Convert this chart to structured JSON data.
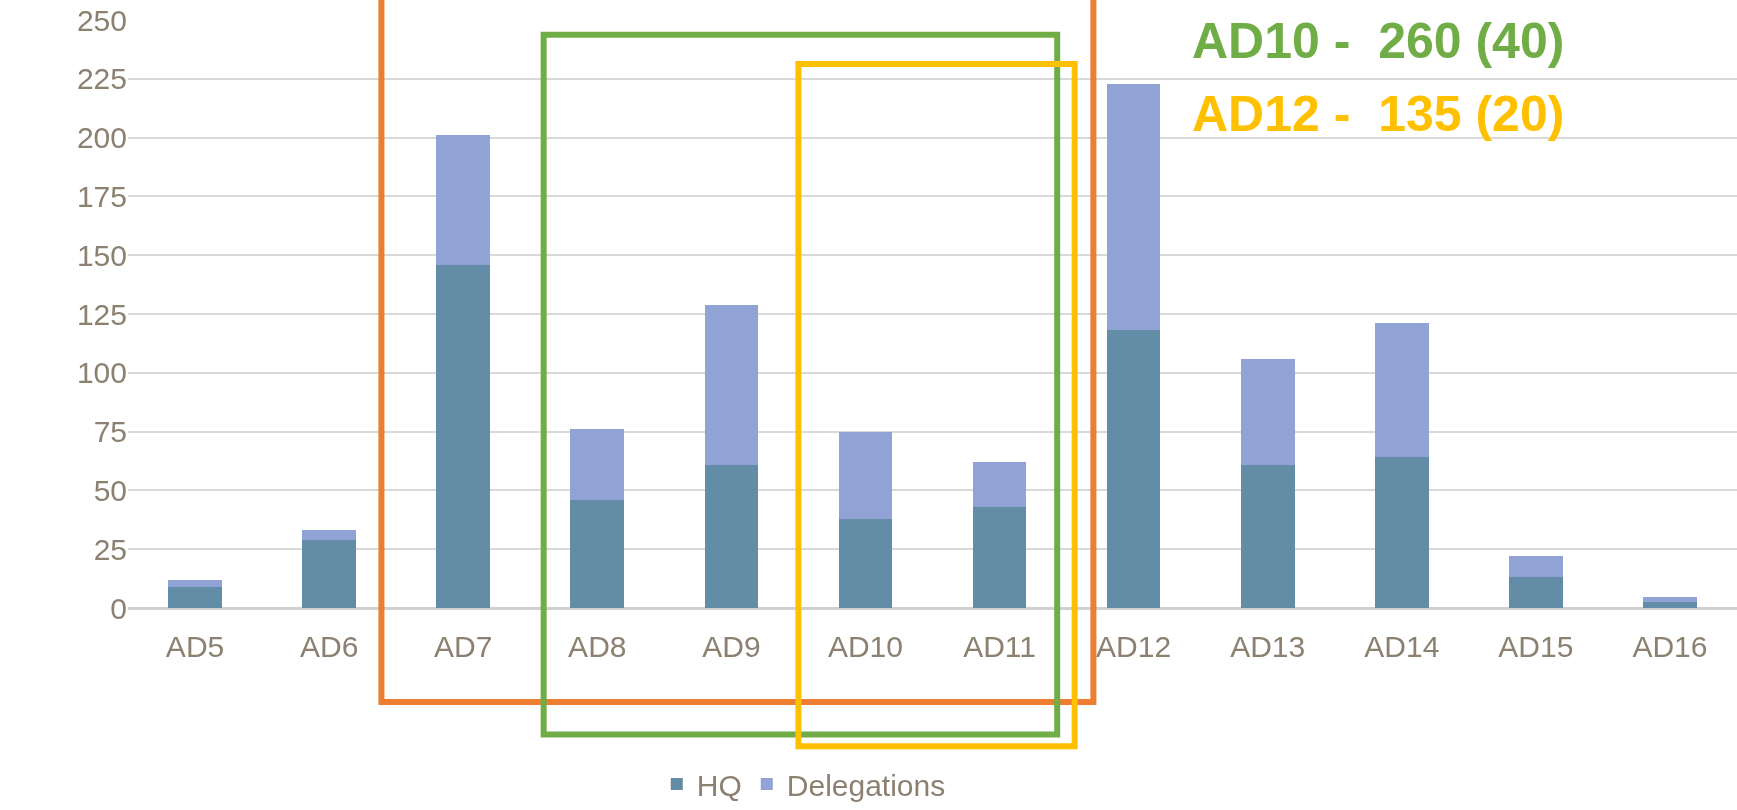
{
  "chart_data": {
    "type": "bar",
    "stacked": true,
    "categories": [
      "AD5",
      "AD6",
      "AD7",
      "AD8",
      "AD9",
      "AD10",
      "AD11",
      "AD12",
      "AD13",
      "AD14",
      "AD15",
      "AD16"
    ],
    "series": [
      {
        "name": "HQ",
        "color": "#638ca6",
        "values": [
          9,
          29,
          146,
          46,
          61,
          38,
          43,
          118,
          61,
          64,
          13,
          2.5
        ]
      },
      {
        "name": "Delegations",
        "color": "#91a3d4",
        "values": [
          3,
          4,
          55,
          30,
          68,
          37,
          19,
          105,
          45,
          57,
          9,
          2
        ]
      }
    ],
    "ylim": [
      0,
      250
    ],
    "yticks": [
      0,
      25,
      50,
      75,
      100,
      125,
      150,
      175,
      200,
      225,
      250
    ],
    "grid": "y",
    "legend": "bottom",
    "annotations": [
      "AD10 -  260 (40)",
      "AD12 -  135 (20)"
    ]
  }
}
